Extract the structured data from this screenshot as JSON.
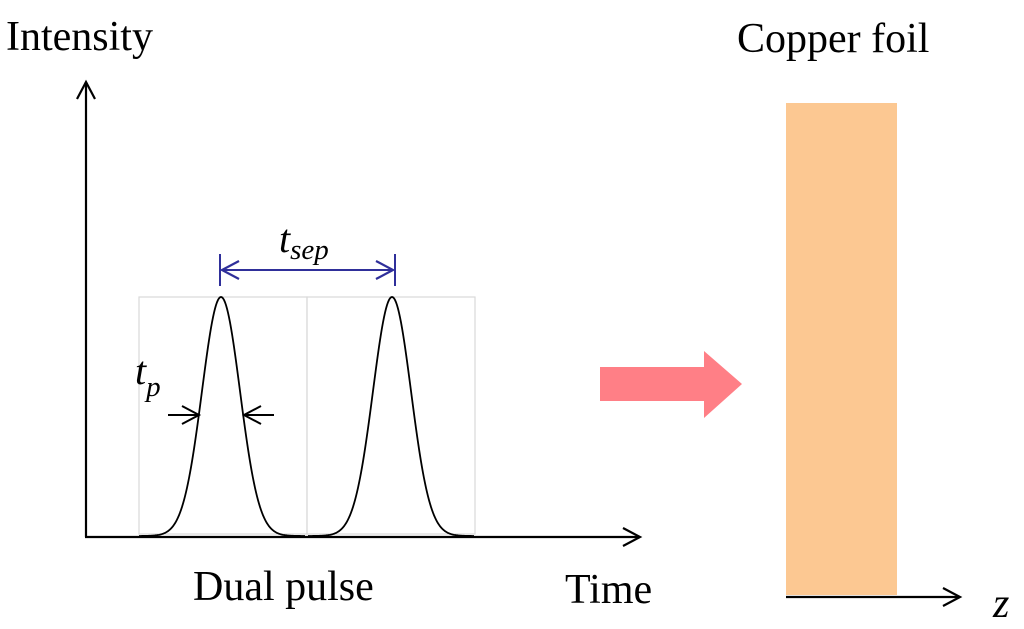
{
  "labels": {
    "y_axis": "Intensity",
    "x_axis": "Time",
    "pulse_caption": "Dual pulse",
    "target": "Copper foil",
    "z_axis": "z"
  },
  "annotations": {
    "separation": {
      "main": "t",
      "sub": "sep"
    },
    "pulse_width": {
      "main": "t",
      "sub": "p"
    }
  },
  "colors": {
    "axis": "#000000",
    "pulse_curve": "#000000",
    "separation_annotation": "#2f2f9a",
    "frame_boxes": "#d9d9d9",
    "arrow": "#ff7f86",
    "copper_foil": "#fcc892"
  },
  "icons": {
    "process_arrow": "right-arrow-icon"
  }
}
